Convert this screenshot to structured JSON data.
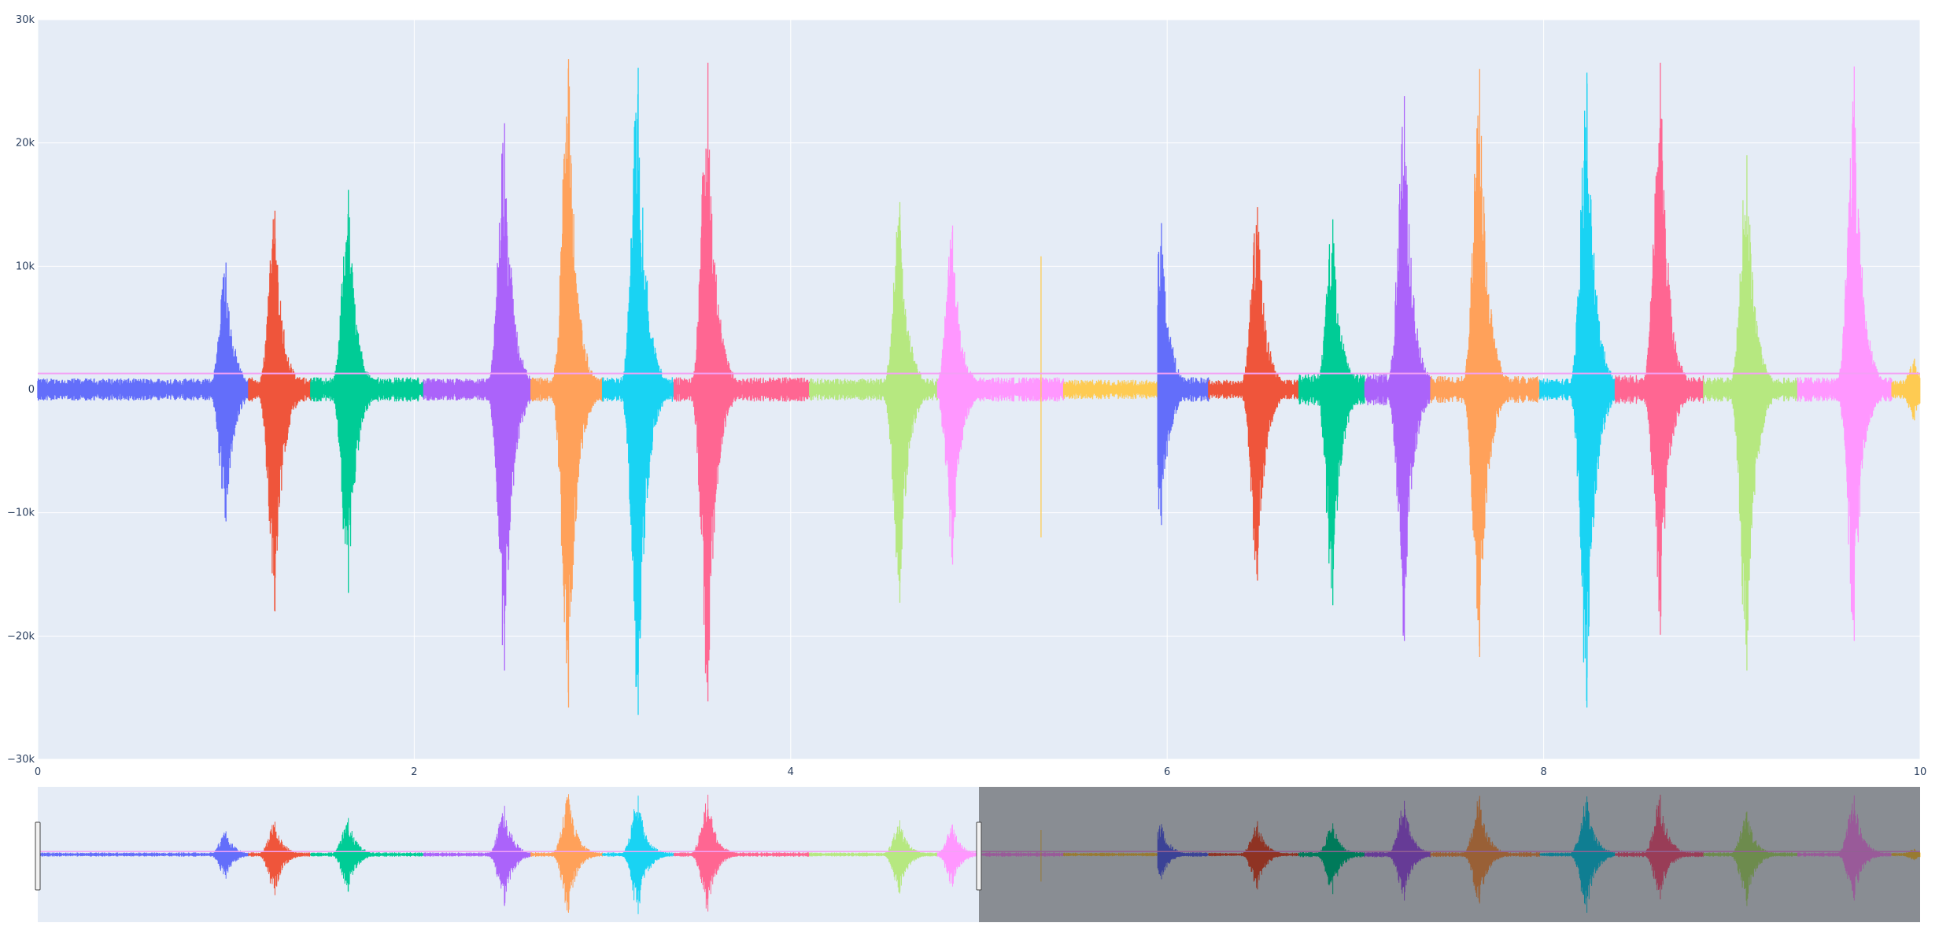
{
  "chart_data": {
    "type": "line",
    "title": "",
    "xlabel": "",
    "ylabel": "",
    "xlim": [
      0,
      10
    ],
    "ylim": [
      -30000,
      30000
    ],
    "x_ticks": [
      "0",
      "2",
      "4",
      "6",
      "8",
      "10"
    ],
    "y_ticks": [
      "30k",
      "20k",
      "10k",
      "0",
      "−10k",
      "−20k",
      "−30k"
    ],
    "grid": true,
    "rangeslider": {
      "visible": true,
      "selected_range": [
        0,
        5
      ]
    },
    "threshold_line": {
      "y": 1300,
      "color": "#f3a0f5"
    },
    "palette": [
      "#636efa",
      "#ef553b",
      "#00cc96",
      "#ab63fa",
      "#ffa15a",
      "#19d3f3",
      "#ff6692",
      "#b6e880",
      "#ff97ff",
      "#fecb52"
    ],
    "segments": [
      {
        "start": 0.0,
        "end": 1.12,
        "color": "#636efa",
        "peak_x": 1.0,
        "max": 10300,
        "min": -10700,
        "base": 900
      },
      {
        "start": 1.12,
        "end": 1.45,
        "color": "#ef553b",
        "peak_x": 1.26,
        "max": 14500,
        "min": -18000,
        "base": 1000
      },
      {
        "start": 1.45,
        "end": 2.05,
        "color": "#00cc96",
        "peak_x": 1.65,
        "max": 16200,
        "min": -16500,
        "base": 1000
      },
      {
        "start": 2.05,
        "end": 2.62,
        "color": "#ab63fa",
        "peak_x": 2.48,
        "max": 21600,
        "min": -22800,
        "base": 900
      },
      {
        "start": 2.62,
        "end": 3.0,
        "color": "#ffa15a",
        "peak_x": 2.82,
        "max": 26800,
        "min": -25800,
        "base": 1000
      },
      {
        "start": 3.0,
        "end": 3.38,
        "color": "#19d3f3",
        "peak_x": 3.19,
        "max": 26100,
        "min": -26400,
        "base": 1000
      },
      {
        "start": 3.38,
        "end": 4.1,
        "color": "#ff6692",
        "peak_x": 3.56,
        "max": 26500,
        "min": -25300,
        "base": 1000
      },
      {
        "start": 4.1,
        "end": 4.78,
        "color": "#b6e880",
        "peak_x": 4.58,
        "max": 15200,
        "min": -17300,
        "base": 900
      },
      {
        "start": 4.78,
        "end": 5.45,
        "color": "#ff97ff",
        "peak_x": 4.86,
        "max": 13300,
        "min": -14200,
        "base": 1000
      },
      {
        "start": 5.45,
        "end": 5.95,
        "color": "#fecb52",
        "peak_x": 5.33,
        "max": 10800,
        "min": -12000,
        "base": 800
      },
      {
        "start": 5.95,
        "end": 6.22,
        "color": "#636efa",
        "peak_x": 5.97,
        "max": 13500,
        "min": -11000,
        "base": 1000
      },
      {
        "start": 6.22,
        "end": 6.7,
        "color": "#ef553b",
        "peak_x": 6.48,
        "max": 14800,
        "min": -15500,
        "base": 800
      },
      {
        "start": 6.7,
        "end": 7.05,
        "color": "#00cc96",
        "peak_x": 6.88,
        "max": 13800,
        "min": -17500,
        "base": 1300
      },
      {
        "start": 7.05,
        "end": 7.4,
        "color": "#ab63fa",
        "peak_x": 7.26,
        "max": 23800,
        "min": -20400,
        "base": 1300
      },
      {
        "start": 7.4,
        "end": 7.98,
        "color": "#ffa15a",
        "peak_x": 7.66,
        "max": 26000,
        "min": -21700,
        "base": 1100
      },
      {
        "start": 7.98,
        "end": 8.38,
        "color": "#19d3f3",
        "peak_x": 8.23,
        "max": 25700,
        "min": -25800,
        "base": 900
      },
      {
        "start": 8.38,
        "end": 8.85,
        "color": "#ff6692",
        "peak_x": 8.62,
        "max": 26500,
        "min": -19900,
        "base": 1200
      },
      {
        "start": 8.85,
        "end": 9.35,
        "color": "#b6e880",
        "peak_x": 9.08,
        "max": 19000,
        "min": -22800,
        "base": 1000
      },
      {
        "start": 9.35,
        "end": 9.85,
        "color": "#ff97ff",
        "peak_x": 9.65,
        "max": 26200,
        "min": -20400,
        "base": 1000
      },
      {
        "start": 9.85,
        "end": 10.0,
        "color": "#fecb52",
        "peak_x": 9.97,
        "max": 2500,
        "min": -2500,
        "base": 800
      }
    ]
  }
}
